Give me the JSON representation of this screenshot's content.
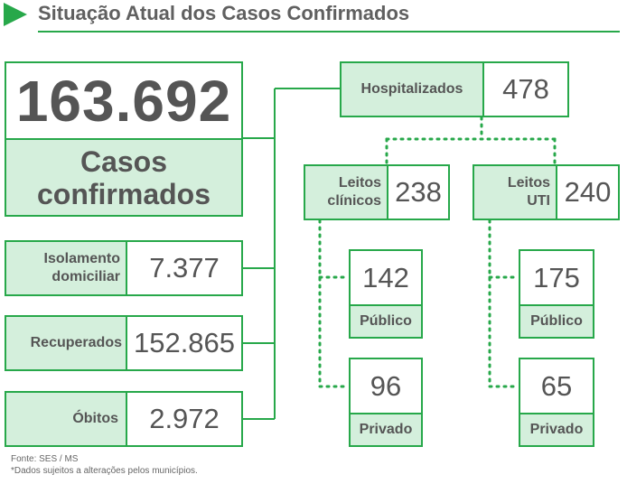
{
  "header": {
    "title": "Situação Atual dos Casos Confirmados"
  },
  "main_case": {
    "value": "163.692",
    "label_line1": "Casos",
    "label_line2": "confirmados"
  },
  "left_stats": [
    {
      "label_line1": "Isolamento",
      "label_line2": "domiciliar",
      "value": "7.377"
    },
    {
      "label_line1": "Recuperados",
      "label_line2": "",
      "value": "152.865"
    },
    {
      "label_line1": "Óbitos",
      "label_line2": "",
      "value": "2.972"
    }
  ],
  "hospital": {
    "label": "Hospitalizados",
    "value": "478"
  },
  "clinical": {
    "label_line1": "Leitos",
    "label_line2": "clínicos",
    "value": "238",
    "public": {
      "value": "142",
      "label": "Público"
    },
    "private": {
      "value": "96",
      "label": "Privado"
    }
  },
  "icu": {
    "label_line1": "Leitos",
    "label_line2": "UTI",
    "value": "240",
    "public": {
      "value": "175",
      "label": "Público"
    },
    "private": {
      "value": "65",
      "label": "Privado"
    }
  },
  "footer": {
    "source": "Fonte: SES / MS",
    "note": "*Dados sujeitos a alterações pelos municípios."
  },
  "colors": {
    "accent": "#27a84a",
    "light_fill": "#d4efdc",
    "text": "#555555"
  }
}
